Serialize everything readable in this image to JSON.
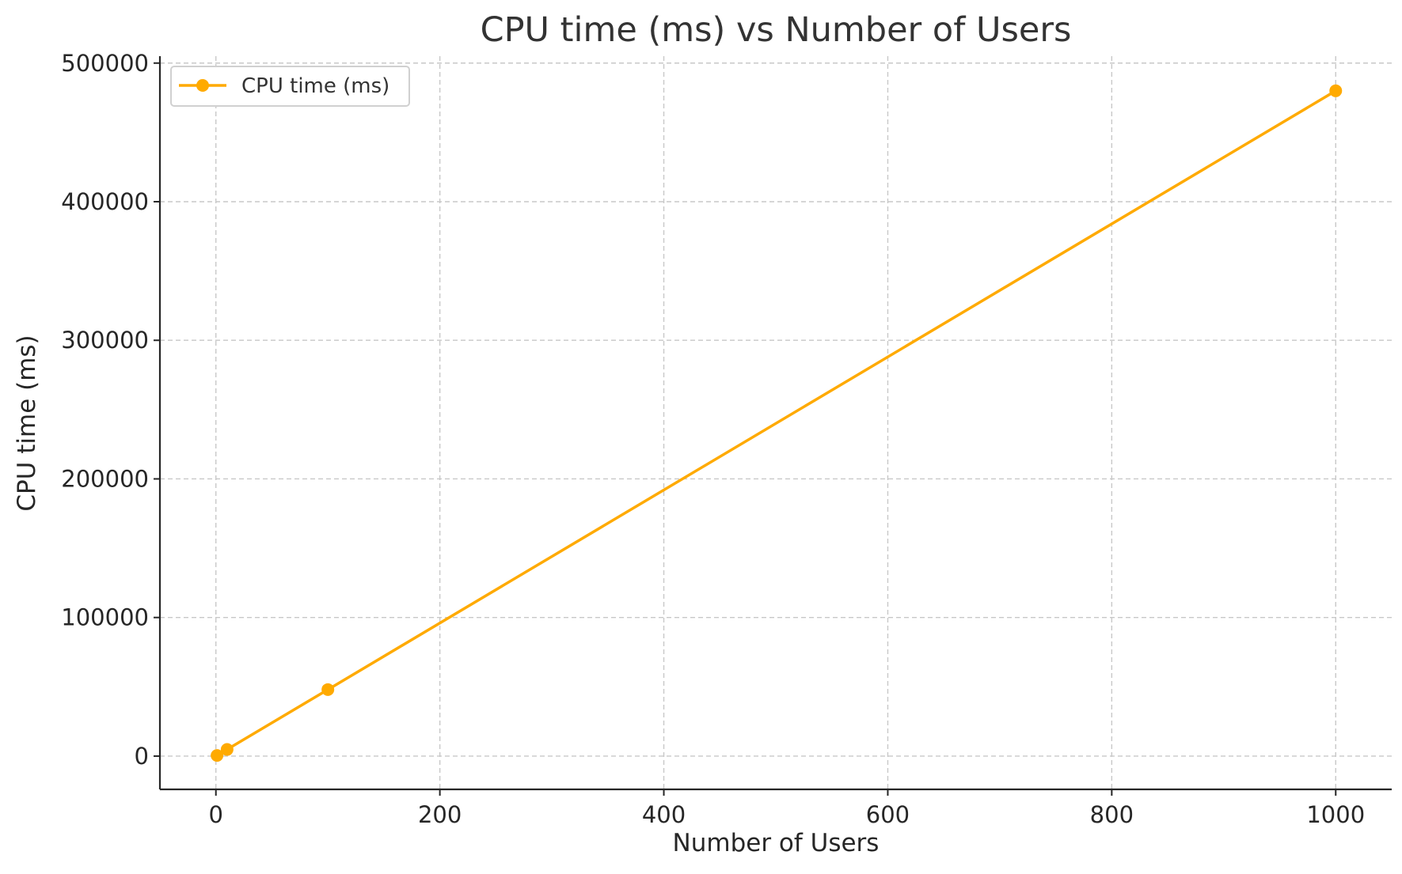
{
  "chart_data": {
    "type": "line",
    "title": "CPU time (ms) vs Number of Users",
    "xlabel": "Number of Users",
    "ylabel": "CPU time (ms)",
    "xlim": [
      -50,
      1050
    ],
    "ylim": [
      -24000,
      505000
    ],
    "x_ticks": [
      0,
      200,
      400,
      600,
      800,
      1000
    ],
    "y_ticks": [
      0,
      100000,
      200000,
      300000,
      400000,
      500000
    ],
    "x_tick_labels": [
      "0",
      "200",
      "400",
      "600",
      "800",
      "1000"
    ],
    "y_tick_labels": [
      "0",
      "100000",
      "200000",
      "300000",
      "400000",
      "500000"
    ],
    "grid": true,
    "legend_position": "top-left",
    "series": [
      {
        "name": "CPU time (ms)",
        "color": "#FFAA00",
        "marker": "circle",
        "x": [
          1,
          10,
          100,
          1000
        ],
        "y": [
          480,
          4800,
          48000,
          480000
        ]
      }
    ]
  }
}
